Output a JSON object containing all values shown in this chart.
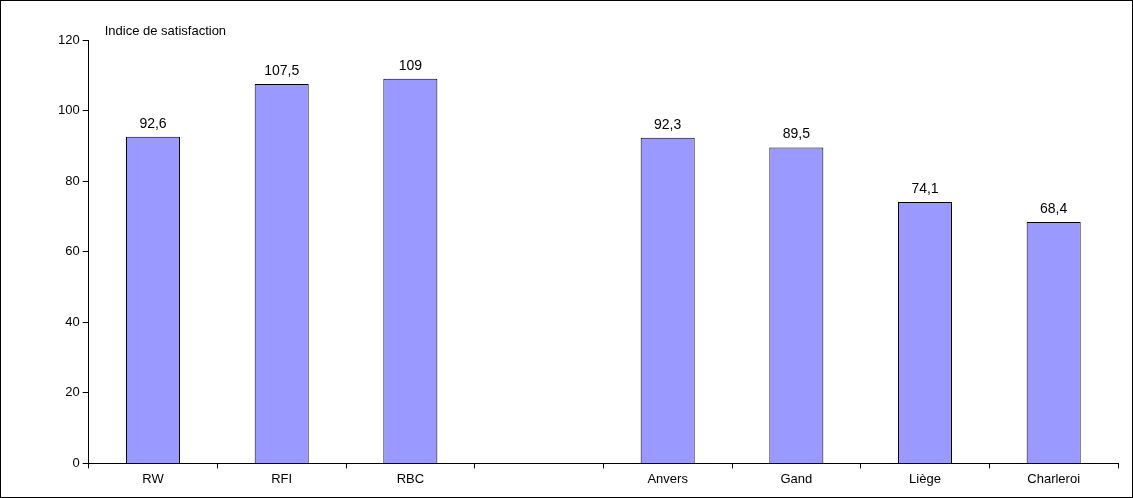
{
  "chart_data": {
    "type": "bar",
    "ylabel": "Indice de satisfaction",
    "categories": [
      "RW",
      "RFI",
      "RBC",
      null,
      "Anvers",
      "Gand",
      "Liège",
      "Charleroi"
    ],
    "values": [
      92.6,
      107.5,
      109,
      null,
      92.3,
      89.5,
      74.1,
      68.4
    ],
    "color": "#9999ff",
    "ylim": [
      0,
      120
    ],
    "yticks": [
      0,
      20,
      40,
      60,
      80,
      100,
      120
    ],
    "value_labels": [
      "92,6",
      "107,5",
      "109",
      null,
      "92,3",
      "89,5",
      "74,1",
      "68,4"
    ],
    "grid": false,
    "legend": false
  }
}
